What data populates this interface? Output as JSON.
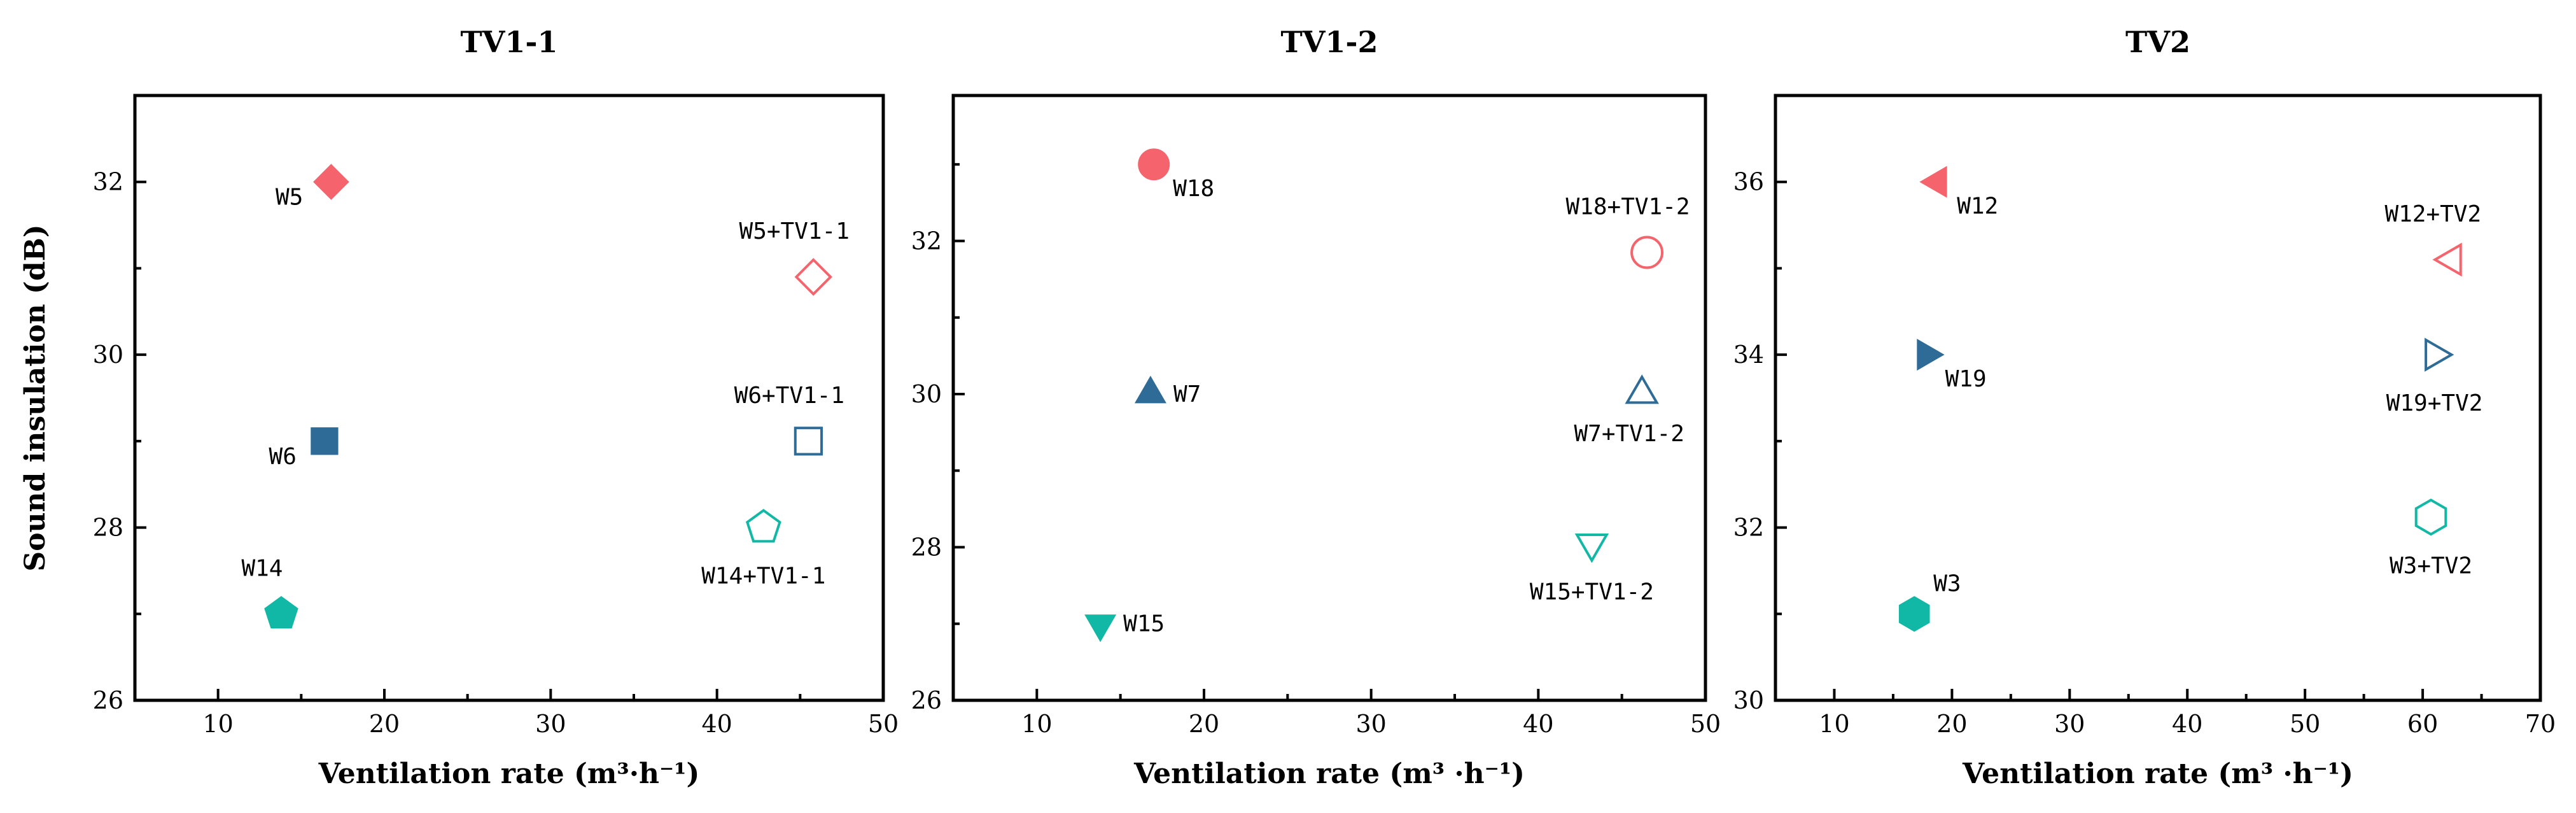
{
  "colors": {
    "red": "#F5646C",
    "blue": "#2E6B97",
    "teal": "#12B8A6"
  },
  "chart_data": [
    {
      "type": "scatter",
      "title": "TV1-1",
      "xlabel": "Ventilation rate (m³·h⁻¹)",
      "ylabel": "Sound insulation (dB)",
      "xlim": [
        5,
        50
      ],
      "ylim": [
        26,
        33
      ],
      "xticks": [
        10,
        20,
        30,
        40,
        50
      ],
      "yticks": [
        26,
        28,
        30,
        32
      ],
      "points": [
        {
          "label": "W5",
          "x": 16.8,
          "y": 32.0,
          "marker": "diamond",
          "color": "red",
          "filled": true,
          "label_pos": "left"
        },
        {
          "label": "W5+TV1-1",
          "x": 45.8,
          "y": 30.9,
          "marker": "diamond",
          "color": "red",
          "filled": false,
          "label_pos": "above-left"
        },
        {
          "label": "W6",
          "x": 16.4,
          "y": 29.0,
          "marker": "square",
          "color": "blue",
          "filled": true,
          "label_pos": "left"
        },
        {
          "label": "W6+TV1-1",
          "x": 45.5,
          "y": 29.0,
          "marker": "square",
          "color": "blue",
          "filled": false,
          "label_pos": "above-left"
        },
        {
          "label": "W14",
          "x": 13.8,
          "y": 27.0,
          "marker": "pentagon",
          "color": "teal",
          "filled": true,
          "label_pos": "above-left"
        },
        {
          "label": "W14+TV1-1",
          "x": 42.8,
          "y": 28.0,
          "marker": "pentagon",
          "color": "teal",
          "filled": false,
          "label_pos": "below"
        }
      ]
    },
    {
      "type": "scatter",
      "title": "TV1-2",
      "xlabel": "Ventilation rate (m³ ·h⁻¹)",
      "ylabel": "",
      "xlim": [
        5,
        50
      ],
      "ylim": [
        26,
        33.9
      ],
      "xticks": [
        10,
        20,
        30,
        40,
        50
      ],
      "yticks": [
        26,
        28,
        30,
        32
      ],
      "points": [
        {
          "label": "W18",
          "x": 17.0,
          "y": 33.0,
          "marker": "circle",
          "color": "red",
          "filled": true,
          "label_pos": "below-right"
        },
        {
          "label": "W18+TV1-2",
          "x": 46.5,
          "y": 31.85,
          "marker": "circle",
          "color": "red",
          "filled": false,
          "label_pos": "above-left"
        },
        {
          "label": "W7",
          "x": 16.8,
          "y": 30.0,
          "marker": "triangle-up",
          "color": "blue",
          "filled": true,
          "label_pos": "right"
        },
        {
          "label": "W7+TV1-2",
          "x": 46.2,
          "y": 30.0,
          "marker": "triangle-up",
          "color": "blue",
          "filled": false,
          "label_pos": "below-left"
        },
        {
          "label": "W15",
          "x": 13.8,
          "y": 27.0,
          "marker": "triangle-down",
          "color": "teal",
          "filled": true,
          "label_pos": "right"
        },
        {
          "label": "W15+TV1-2",
          "x": 43.2,
          "y": 28.05,
          "marker": "triangle-down",
          "color": "teal",
          "filled": false,
          "label_pos": "below"
        }
      ]
    },
    {
      "type": "scatter",
      "title": "TV2",
      "xlabel": "Ventilation rate (m³ ·h⁻¹)",
      "ylabel": "",
      "xlim": [
        5,
        70
      ],
      "ylim": [
        30,
        37
      ],
      "xticks": [
        10,
        20,
        30,
        40,
        50,
        60,
        70
      ],
      "yticks": [
        30,
        32,
        34,
        36
      ],
      "points": [
        {
          "label": "W12",
          "x": 18.8,
          "y": 36.0,
          "marker": "triangle-left",
          "color": "red",
          "filled": true,
          "label_pos": "below-right"
        },
        {
          "label": "W12+TV2",
          "x": 62.5,
          "y": 35.1,
          "marker": "triangle-left",
          "color": "red",
          "filled": false,
          "label_pos": "above-left"
        },
        {
          "label": "W19",
          "x": 17.8,
          "y": 34.0,
          "marker": "triangle-right",
          "color": "blue",
          "filled": true,
          "label_pos": "below-right"
        },
        {
          "label": "W19+TV2",
          "x": 61.0,
          "y": 34.0,
          "marker": "triangle-right",
          "color": "blue",
          "filled": false,
          "label_pos": "below"
        },
        {
          "label": "W3",
          "x": 16.8,
          "y": 31.0,
          "marker": "hexagon",
          "color": "teal",
          "filled": true,
          "label_pos": "above-right"
        },
        {
          "label": "W3+TV2",
          "x": 60.7,
          "y": 32.12,
          "marker": "hexagon",
          "color": "teal",
          "filled": false,
          "label_pos": "below"
        }
      ]
    }
  ]
}
